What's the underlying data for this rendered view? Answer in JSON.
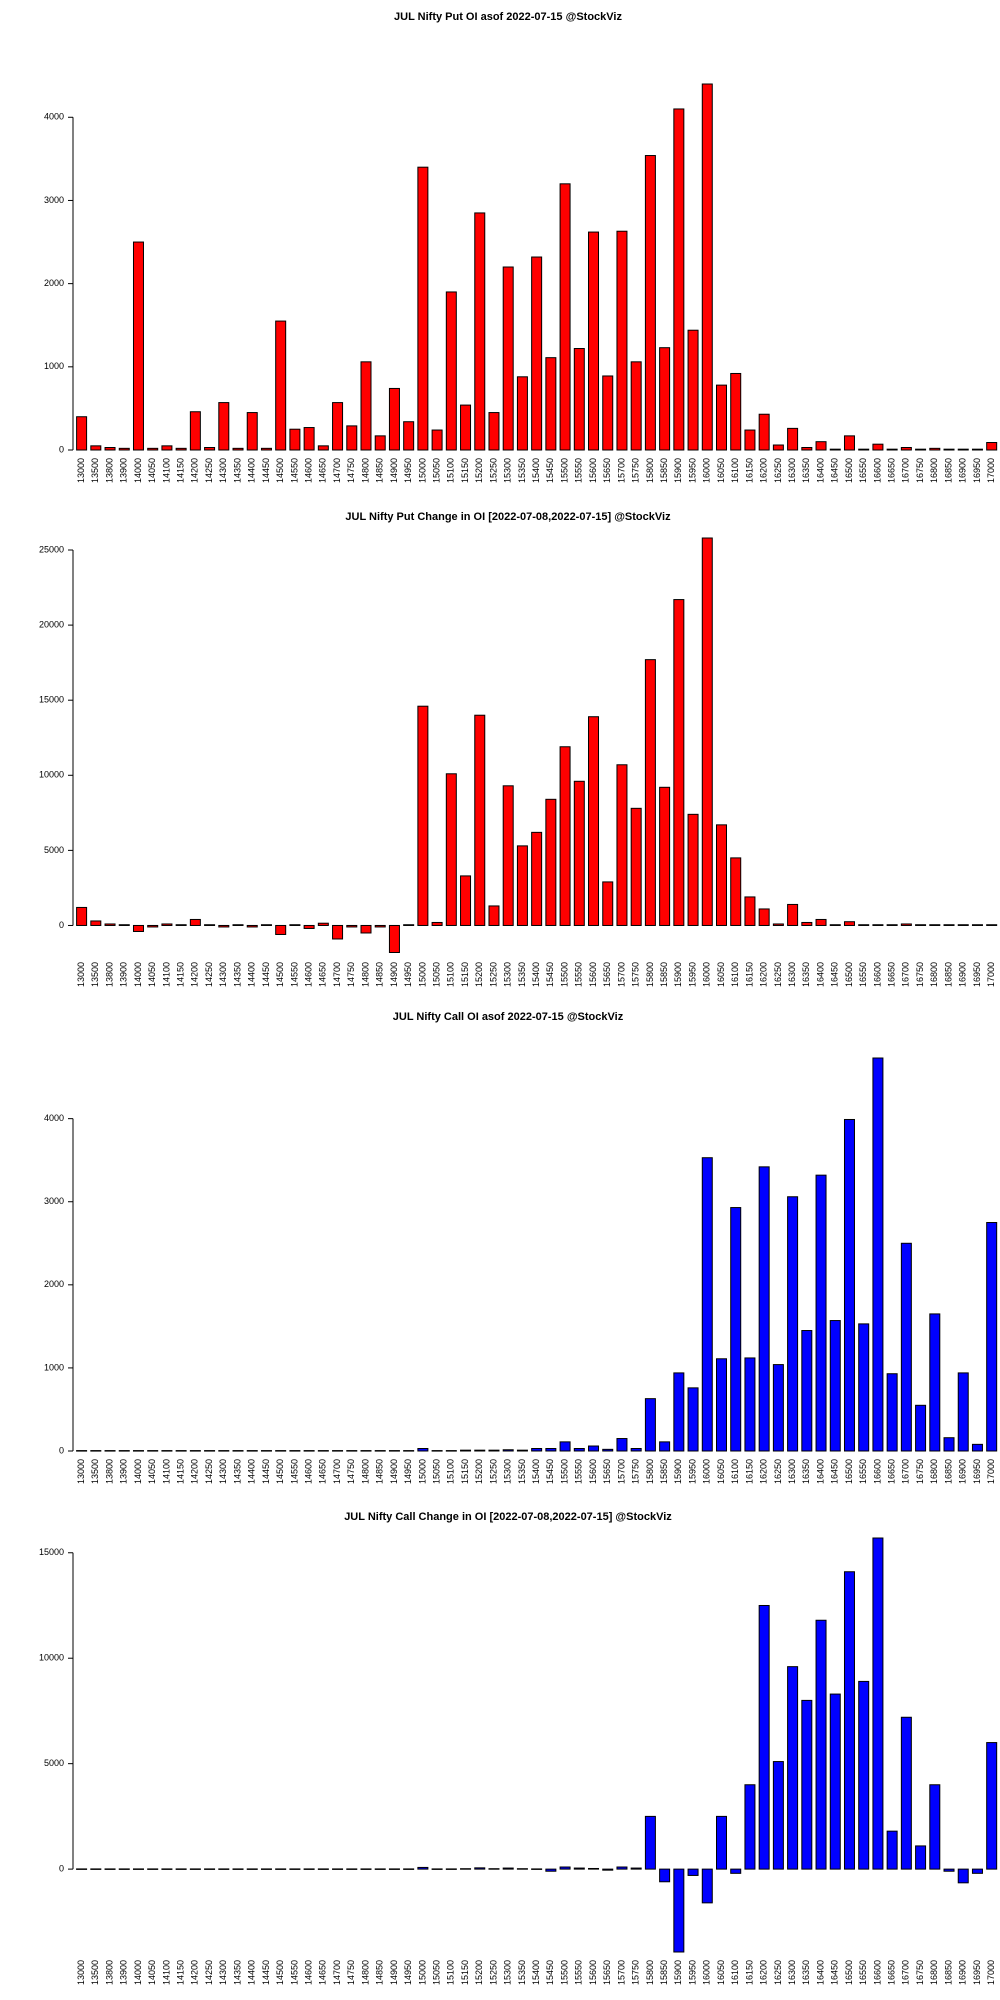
{
  "chart_data": [
    {
      "type": "bar",
      "title": "JUL Nifty Put OI asof 2022-07-15 @StockViz",
      "color": "#ff0000",
      "categories": [
        "13000",
        "13500",
        "13800",
        "13900",
        "14000",
        "14050",
        "14100",
        "14150",
        "14200",
        "14250",
        "14300",
        "14350",
        "14400",
        "14450",
        "14500",
        "14550",
        "14600",
        "14650",
        "14700",
        "14750",
        "14800",
        "14850",
        "14900",
        "14950",
        "15000",
        "15050",
        "15100",
        "15150",
        "15200",
        "15250",
        "15300",
        "15350",
        "15400",
        "15450",
        "15500",
        "15550",
        "15600",
        "15650",
        "15700",
        "15750",
        "15800",
        "15850",
        "15900",
        "15950",
        "16000",
        "16050",
        "16100",
        "16150",
        "16200",
        "16250",
        "16300",
        "16350",
        "16400",
        "16450",
        "16500",
        "16550",
        "16600",
        "16650",
        "16700",
        "16750",
        "16800",
        "16850",
        "16900",
        "16950",
        "17000"
      ],
      "values": [
        400,
        50,
        30,
        20,
        2500,
        20,
        50,
        20,
        460,
        30,
        570,
        20,
        450,
        20,
        1550,
        250,
        270,
        50,
        570,
        290,
        1060,
        170,
        740,
        340,
        3400,
        240,
        1900,
        540,
        2850,
        450,
        2200,
        880,
        2320,
        1110,
        3200,
        1220,
        2620,
        890,
        2630,
        1060,
        3540,
        1230,
        4100,
        1440,
        4400,
        780,
        920,
        240,
        430,
        60,
        260,
        30,
        100,
        10,
        170,
        10,
        70,
        10,
        30,
        10,
        20,
        10,
        10,
        10,
        90
      ],
      "ylim": [
        0,
        4400
      ],
      "yticks": [
        0,
        1000,
        2000,
        3000,
        4000
      ]
    },
    {
      "type": "bar",
      "title": "JUL Nifty Put Change in OI [2022-07-08,2022-07-15] @StockViz",
      "color": "#ff0000",
      "categories": [
        "13000",
        "13500",
        "13800",
        "13900",
        "14000",
        "14050",
        "14100",
        "14150",
        "14200",
        "14250",
        "14300",
        "14350",
        "14400",
        "14450",
        "14500",
        "14550",
        "14600",
        "14650",
        "14700",
        "14750",
        "14800",
        "14850",
        "14900",
        "14950",
        "15000",
        "15050",
        "15100",
        "15150",
        "15200",
        "15250",
        "15300",
        "15350",
        "15400",
        "15450",
        "15500",
        "15550",
        "15600",
        "15650",
        "15700",
        "15750",
        "15800",
        "15850",
        "15900",
        "15950",
        "16000",
        "16050",
        "16100",
        "16150",
        "16200",
        "16250",
        "16300",
        "16350",
        "16400",
        "16450",
        "16500",
        "16550",
        "16600",
        "16650",
        "16700",
        "16750",
        "16800",
        "16850",
        "16900",
        "16950",
        "17000"
      ],
      "values": [
        1200,
        300,
        100,
        50,
        -400,
        -100,
        100,
        50,
        400,
        50,
        -100,
        50,
        -100,
        50,
        -600,
        50,
        -200,
        150,
        -900,
        -100,
        -500,
        -100,
        -1800,
        50,
        14600,
        200,
        10100,
        3300,
        14000,
        1300,
        9300,
        5300,
        6200,
        8400,
        11900,
        9600,
        13900,
        2900,
        10700,
        7800,
        17700,
        9200,
        21700,
        7400,
        25800,
        6700,
        4500,
        1900,
        1100,
        100,
        1400,
        200,
        400,
        50,
        250,
        50,
        50,
        50,
        100,
        50,
        50,
        50,
        50,
        50,
        50
      ],
      "ylim": [
        -1900,
        25800
      ],
      "yticks": [
        0,
        5000,
        10000,
        15000,
        20000,
        25000
      ]
    },
    {
      "type": "bar",
      "title": "JUL Nifty Call OI asof 2022-07-15 @StockViz",
      "color": "#0000ff",
      "categories": [
        "13000",
        "13500",
        "13800",
        "13900",
        "14000",
        "14050",
        "14100",
        "14150",
        "14200",
        "14250",
        "14300",
        "14350",
        "14400",
        "14450",
        "14500",
        "14550",
        "14600",
        "14650",
        "14700",
        "14750",
        "14800",
        "14850",
        "14900",
        "14950",
        "15000",
        "15050",
        "15100",
        "15150",
        "15200",
        "15250",
        "15300",
        "15350",
        "15400",
        "15450",
        "15500",
        "15550",
        "15600",
        "15650",
        "15700",
        "15750",
        "15800",
        "15850",
        "15900",
        "15950",
        "16000",
        "16050",
        "16100",
        "16150",
        "16200",
        "16250",
        "16300",
        "16350",
        "16400",
        "16450",
        "16500",
        "16550",
        "16600",
        "16650",
        "16700",
        "16750",
        "16800",
        "16850",
        "16900",
        "16950",
        "17000"
      ],
      "values": [
        5,
        5,
        5,
        5,
        5,
        5,
        5,
        5,
        5,
        5,
        5,
        5,
        5,
        5,
        5,
        5,
        5,
        5,
        5,
        5,
        5,
        5,
        5,
        5,
        30,
        5,
        5,
        10,
        10,
        10,
        15,
        10,
        30,
        30,
        110,
        30,
        60,
        20,
        150,
        30,
        630,
        110,
        940,
        760,
        3530,
        1110,
        2930,
        1120,
        3420,
        1040,
        3060,
        1450,
        3320,
        1570,
        3990,
        1530,
        4730,
        930,
        2500,
        550,
        1650,
        160,
        940,
        80,
        2750
      ],
      "ylim": [
        0,
        4730
      ],
      "yticks": [
        0,
        1000,
        2000,
        3000,
        4000
      ]
    },
    {
      "type": "bar",
      "title": "JUL Nifty Call Change in OI [2022-07-08,2022-07-15] @StockViz",
      "color": "#0000ff",
      "categories": [
        "13000",
        "13500",
        "13800",
        "13900",
        "14000",
        "14050",
        "14100",
        "14150",
        "14200",
        "14250",
        "14300",
        "14350",
        "14400",
        "14450",
        "14500",
        "14550",
        "14600",
        "14650",
        "14700",
        "14750",
        "14800",
        "14850",
        "14900",
        "14950",
        "15000",
        "15050",
        "15100",
        "15150",
        "15200",
        "15250",
        "15300",
        "15350",
        "15400",
        "15450",
        "15500",
        "15550",
        "15600",
        "15650",
        "15700",
        "15750",
        "15800",
        "15850",
        "15900",
        "15950",
        "16000",
        "16050",
        "16100",
        "16150",
        "16200",
        "16250",
        "16300",
        "16350",
        "16400",
        "16450",
        "16500",
        "16550",
        "16600",
        "16650",
        "16700",
        "16750",
        "16800",
        "16850",
        "16900",
        "16950",
        "17000"
      ],
      "values": [
        10,
        10,
        10,
        10,
        10,
        10,
        10,
        10,
        10,
        10,
        10,
        10,
        10,
        10,
        10,
        10,
        10,
        10,
        10,
        10,
        10,
        10,
        10,
        10,
        80,
        10,
        10,
        20,
        60,
        20,
        50,
        20,
        10,
        -100,
        100,
        50,
        30,
        -50,
        100,
        50,
        2500,
        -600,
        -3930,
        -300,
        -1600,
        2500,
        -200,
        4000,
        12500,
        5100,
        9600,
        8000,
        11800,
        8300,
        14100,
        8900,
        15700,
        1800,
        7200,
        1100,
        4000,
        -100,
        -650,
        -200,
        6000
      ],
      "ylim": [
        -3930,
        15700
      ],
      "yticks": [
        0,
        5000,
        10000,
        15000
      ]
    }
  ]
}
